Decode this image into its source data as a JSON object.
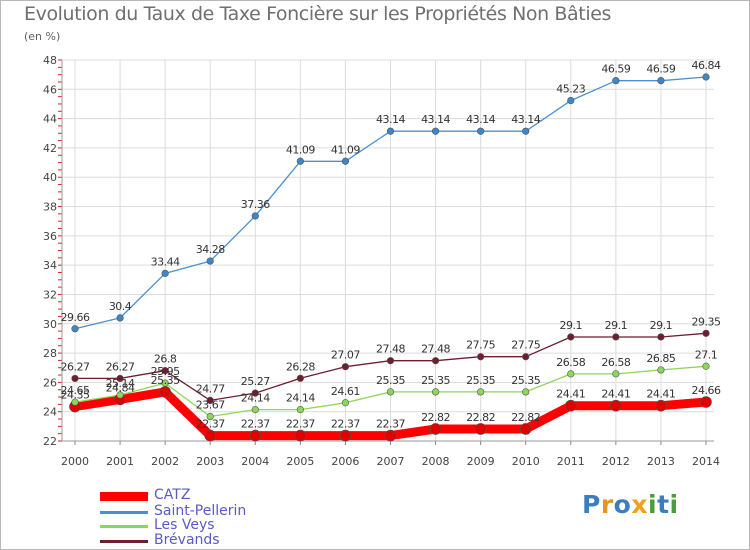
{
  "title": "Evolution du Taux de Taxe Foncière sur les Propriétés Non Bâties",
  "unit_label": "(en %)",
  "logo": {
    "letters": [
      "P",
      "r",
      "o",
      "x",
      "i",
      "t",
      "i"
    ],
    "colors": [
      "#3a7ec2",
      "#e8941f",
      "#3a7ec2",
      "#f0a020",
      "#4a9e3a",
      "#3a7ec2",
      "#4a9e3a"
    ]
  },
  "chart_data": {
    "type": "line",
    "title": "Evolution du Taux de Taxe Foncière sur les Propriétés Non Bâties",
    "ylabel": "(en %)",
    "xlabel": "",
    "x": [
      "2000",
      "2001",
      "2002",
      "2003",
      "2004",
      "2005",
      "2006",
      "2007",
      "2008",
      "2009",
      "2010",
      "2011",
      "2012",
      "2013",
      "2014"
    ],
    "ylim": [
      22,
      48
    ],
    "yticks": [
      22,
      24,
      26,
      28,
      30,
      32,
      34,
      36,
      38,
      40,
      42,
      44,
      46,
      48
    ],
    "grid": true,
    "legend_position": "bottom-left",
    "series": [
      {
        "name": "CATZ",
        "color": "#ff0000",
        "values": [
          24.35,
          24.84,
          25.35,
          22.37,
          22.37,
          22.37,
          22.37,
          22.37,
          22.82,
          22.82,
          22.82,
          24.41,
          24.41,
          24.41,
          24.66
        ],
        "labels": [
          "24.35",
          "24.84",
          "25.35",
          "22.37",
          "22.37",
          "22.37",
          "22.37",
          "22.37",
          "22.82",
          "22.82",
          "22.82",
          "24.41",
          "24.41",
          "24.41",
          "24.66"
        ]
      },
      {
        "name": "Saint-Pellerin",
        "color": "#4a90d0",
        "values": [
          29.66,
          30.4,
          33.44,
          34.28,
          37.36,
          41.09,
          41.09,
          43.14,
          43.14,
          43.14,
          43.14,
          45.23,
          46.59,
          46.59,
          46.84
        ],
        "labels": [
          "29.66",
          "30.4",
          "33.44",
          "34.28",
          "37.36",
          "41.09",
          "41.09",
          "43.14",
          "43.14",
          "43.14",
          "43.14",
          "45.23",
          "46.59",
          "46.59",
          "46.84"
        ]
      },
      {
        "name": "Les Veys",
        "color": "#8ed65a",
        "values": [
          24.65,
          25.14,
          25.95,
          23.67,
          24.14,
          24.14,
          24.61,
          25.35,
          25.35,
          25.35,
          25.35,
          26.58,
          26.58,
          26.85,
          27.1
        ],
        "labels": [
          "24.65",
          "25.14",
          "25.95",
          "23.67",
          "24.14",
          "24.14",
          "24.61",
          "25.35",
          "25.35",
          "25.35",
          "25.35",
          "26.58",
          "26.58",
          "26.85",
          "27.1"
        ]
      },
      {
        "name": "Brévands",
        "color": "#6e1e2e",
        "values": [
          26.27,
          26.27,
          26.8,
          24.77,
          25.27,
          26.28,
          27.07,
          27.48,
          27.48,
          27.75,
          27.75,
          29.1,
          29.1,
          29.1,
          29.35
        ],
        "labels": [
          "26.27",
          "26.27",
          "26.8",
          "24.77",
          "25.27",
          "26.28",
          "27.07",
          "27.48",
          "27.48",
          "27.75",
          "27.75",
          "29.1",
          "29.1",
          "29.1",
          "29.35"
        ]
      }
    ]
  }
}
